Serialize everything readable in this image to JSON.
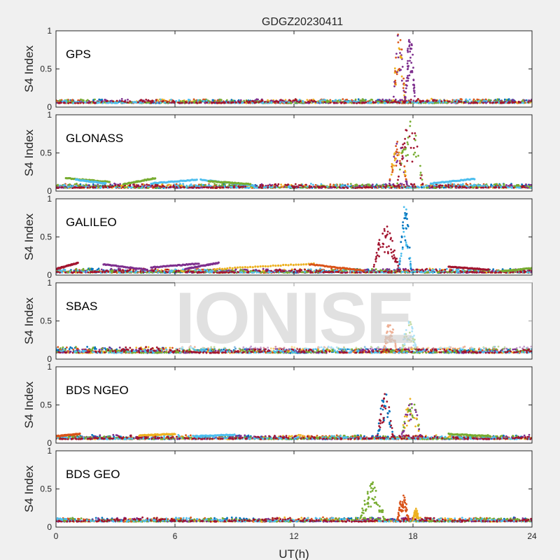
{
  "title": "GDGZ20230411",
  "xlabel": "UT(h)",
  "watermark": "IONISE",
  "colors": [
    "#0072BD",
    "#D95319",
    "#EDB120",
    "#7E2F8E",
    "#77AC30",
    "#4DBEEE",
    "#A2142F"
  ],
  "chart_data": [
    {
      "type": "scatter",
      "name": "GPS",
      "ylabel": "S4 Index",
      "xlim": [
        0,
        24
      ],
      "ylim": [
        0,
        1
      ],
      "xticks": [
        0,
        6,
        12,
        18,
        24
      ],
      "yticks": [
        0,
        0.5,
        1
      ],
      "baseline": [
        0.05,
        0.1
      ],
      "bursts": [
        {
          "x": [
            17.0,
            17.6
          ],
          "peak": 1.0,
          "colors": [
            1,
            2,
            3
          ]
        },
        {
          "x": [
            17.6,
            18.1
          ],
          "peak": 1.0,
          "colors": [
            3
          ]
        }
      ],
      "arcs": []
    },
    {
      "type": "scatter",
      "name": "GLONASS",
      "ylabel": "S4 Index",
      "xlim": [
        0,
        24
      ],
      "ylim": [
        0,
        1
      ],
      "xticks": [
        0,
        6,
        12,
        18,
        24
      ],
      "yticks": [
        0,
        0.5,
        1
      ],
      "baseline": [
        0.04,
        0.09
      ],
      "bursts": [
        {
          "x": [
            16.8,
            17.7
          ],
          "peak": 0.7,
          "colors": [
            2,
            3,
            1
          ]
        },
        {
          "x": [
            17.2,
            18.5
          ],
          "peak": 0.95,
          "colors": [
            6,
            4
          ]
        }
      ],
      "arcs": [
        {
          "x": [
            0.5,
            2.7
          ],
          "y": [
            0.17,
            0.12
          ],
          "color": 4
        },
        {
          "x": [
            1.0,
            2.5
          ],
          "y": [
            0.15,
            0.1
          ],
          "color": 5
        },
        {
          "x": [
            3.4,
            5.0
          ],
          "y": [
            0.09,
            0.17
          ],
          "color": 4
        },
        {
          "x": [
            4.8,
            7.1
          ],
          "y": [
            0.1,
            0.15
          ],
          "color": 5
        },
        {
          "x": [
            7.3,
            10.0
          ],
          "y": [
            0.15,
            0.07
          ],
          "color": 5
        },
        {
          "x": [
            7.7,
            9.8
          ],
          "y": [
            0.13,
            0.09
          ],
          "color": 4
        },
        {
          "x": [
            18.9,
            21.1
          ],
          "y": [
            0.1,
            0.16
          ],
          "color": 5
        }
      ]
    },
    {
      "type": "scatter",
      "name": "GALILEO",
      "ylabel": "S4 Index",
      "xlim": [
        0,
        24
      ],
      "ylim": [
        0,
        1
      ],
      "xticks": [
        0,
        6,
        12,
        18,
        24
      ],
      "yticks": [
        0,
        0.5,
        1
      ],
      "baseline": [
        0.03,
        0.08
      ],
      "bursts": [
        {
          "x": [
            16.0,
            17.3
          ],
          "peak": 0.65,
          "colors": [
            6
          ]
        },
        {
          "x": [
            17.3,
            17.9
          ],
          "peak": 0.93,
          "colors": [
            0,
            5
          ]
        }
      ],
      "arcs": [
        {
          "x": [
            0.0,
            1.1
          ],
          "y": [
            0.08,
            0.16
          ],
          "color": 6
        },
        {
          "x": [
            2.4,
            4.6
          ],
          "y": [
            0.14,
            0.07
          ],
          "color": 3
        },
        {
          "x": [
            4.8,
            7.2
          ],
          "y": [
            0.1,
            0.15
          ],
          "color": 3
        },
        {
          "x": [
            6.5,
            8.2
          ],
          "y": [
            0.08,
            0.16
          ],
          "color": 3
        },
        {
          "x": [
            8.0,
            13.0
          ],
          "y": [
            0.08,
            0.15
          ],
          "color": 2
        },
        {
          "x": [
            12.8,
            15.5
          ],
          "y": [
            0.14,
            0.06
          ],
          "color": 1
        },
        {
          "x": [
            19.8,
            21.8
          ],
          "y": [
            0.11,
            0.07
          ],
          "color": 6
        },
        {
          "x": [
            22.5,
            24.0
          ],
          "y": [
            0.05,
            0.09
          ],
          "color": 4
        }
      ]
    },
    {
      "type": "scatter",
      "name": "SBAS",
      "ylabel": "S4 Index",
      "xlim": [
        0,
        24
      ],
      "ylim": [
        0,
        1
      ],
      "xticks": [
        0,
        6,
        12,
        18,
        24
      ],
      "yticks": [
        0,
        0.5,
        1
      ],
      "baseline": [
        0.08,
        0.16
      ],
      "bursts": [
        {
          "x": [
            16.5,
            17.2
          ],
          "peak": 0.5,
          "colors": [
            1
          ]
        },
        {
          "x": [
            17.4,
            18.2
          ],
          "peak": 0.5,
          "colors": [
            5,
            4
          ]
        }
      ],
      "arcs": []
    },
    {
      "type": "scatter",
      "name": "BDS NGEO",
      "ylabel": "S4 Index",
      "xlim": [
        0,
        24
      ],
      "ylim": [
        0,
        1
      ],
      "xticks": [
        0,
        6,
        12,
        18,
        24
      ],
      "yticks": [
        0,
        0.5,
        1
      ],
      "baseline": [
        0.05,
        0.1
      ],
      "bursts": [
        {
          "x": [
            16.2,
            17.0
          ],
          "peak": 0.67,
          "colors": [
            0,
            6
          ]
        },
        {
          "x": [
            17.4,
            18.4
          ],
          "peak": 0.6,
          "colors": [
            3,
            2,
            4
          ]
        }
      ],
      "arcs": [
        {
          "x": [
            0.0,
            1.2
          ],
          "y": [
            0.09,
            0.12
          ],
          "color": 1
        },
        {
          "x": [
            4.2,
            6.0
          ],
          "y": [
            0.1,
            0.12
          ],
          "color": 2
        },
        {
          "x": [
            7.0,
            9.0
          ],
          "y": [
            0.09,
            0.11
          ],
          "color": 5
        },
        {
          "x": [
            19.8,
            21.9
          ],
          "y": [
            0.12,
            0.09
          ],
          "color": 4
        }
      ]
    },
    {
      "type": "scatter",
      "name": "BDS GEO",
      "ylabel": "S4 Index",
      "xlim": [
        0,
        24
      ],
      "ylim": [
        0,
        1
      ],
      "xticks": [
        0,
        6,
        12,
        18,
        24
      ],
      "yticks": [
        0,
        0.5,
        1
      ],
      "baseline": [
        0.07,
        0.12
      ],
      "bursts": [
        {
          "x": [
            15.3,
            16.6
          ],
          "peak": 0.6,
          "colors": [
            4
          ]
        },
        {
          "x": [
            17.2,
            17.8
          ],
          "peak": 0.45,
          "colors": [
            1
          ]
        },
        {
          "x": [
            18.0,
            18.3
          ],
          "peak": 0.25,
          "colors": [
            2
          ]
        }
      ],
      "arcs": []
    }
  ]
}
